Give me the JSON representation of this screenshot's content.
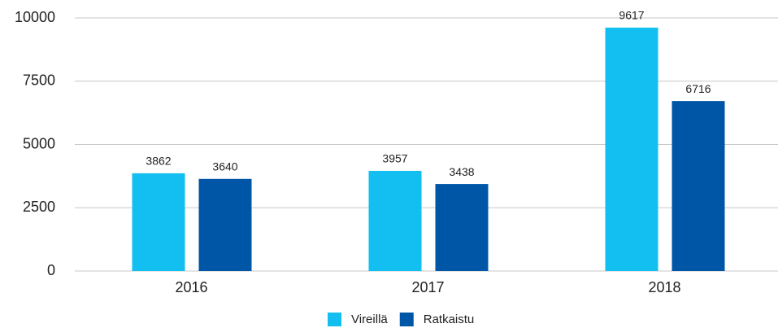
{
  "chart_data": {
    "type": "bar",
    "categories": [
      "2016",
      "2017",
      "2018"
    ],
    "series": [
      {
        "name": "Vireillä",
        "color": "#12bff0",
        "values": [
          3862,
          3957,
          9617
        ]
      },
      {
        "name": "Ratkaistu",
        "color": "#0056a6",
        "values": [
          3640,
          3438,
          6716
        ]
      }
    ],
    "ylim": [
      0,
      10000
    ],
    "yticks": [
      0,
      2500,
      5000,
      7500,
      10000
    ],
    "grid": true,
    "legend": "bottom"
  }
}
